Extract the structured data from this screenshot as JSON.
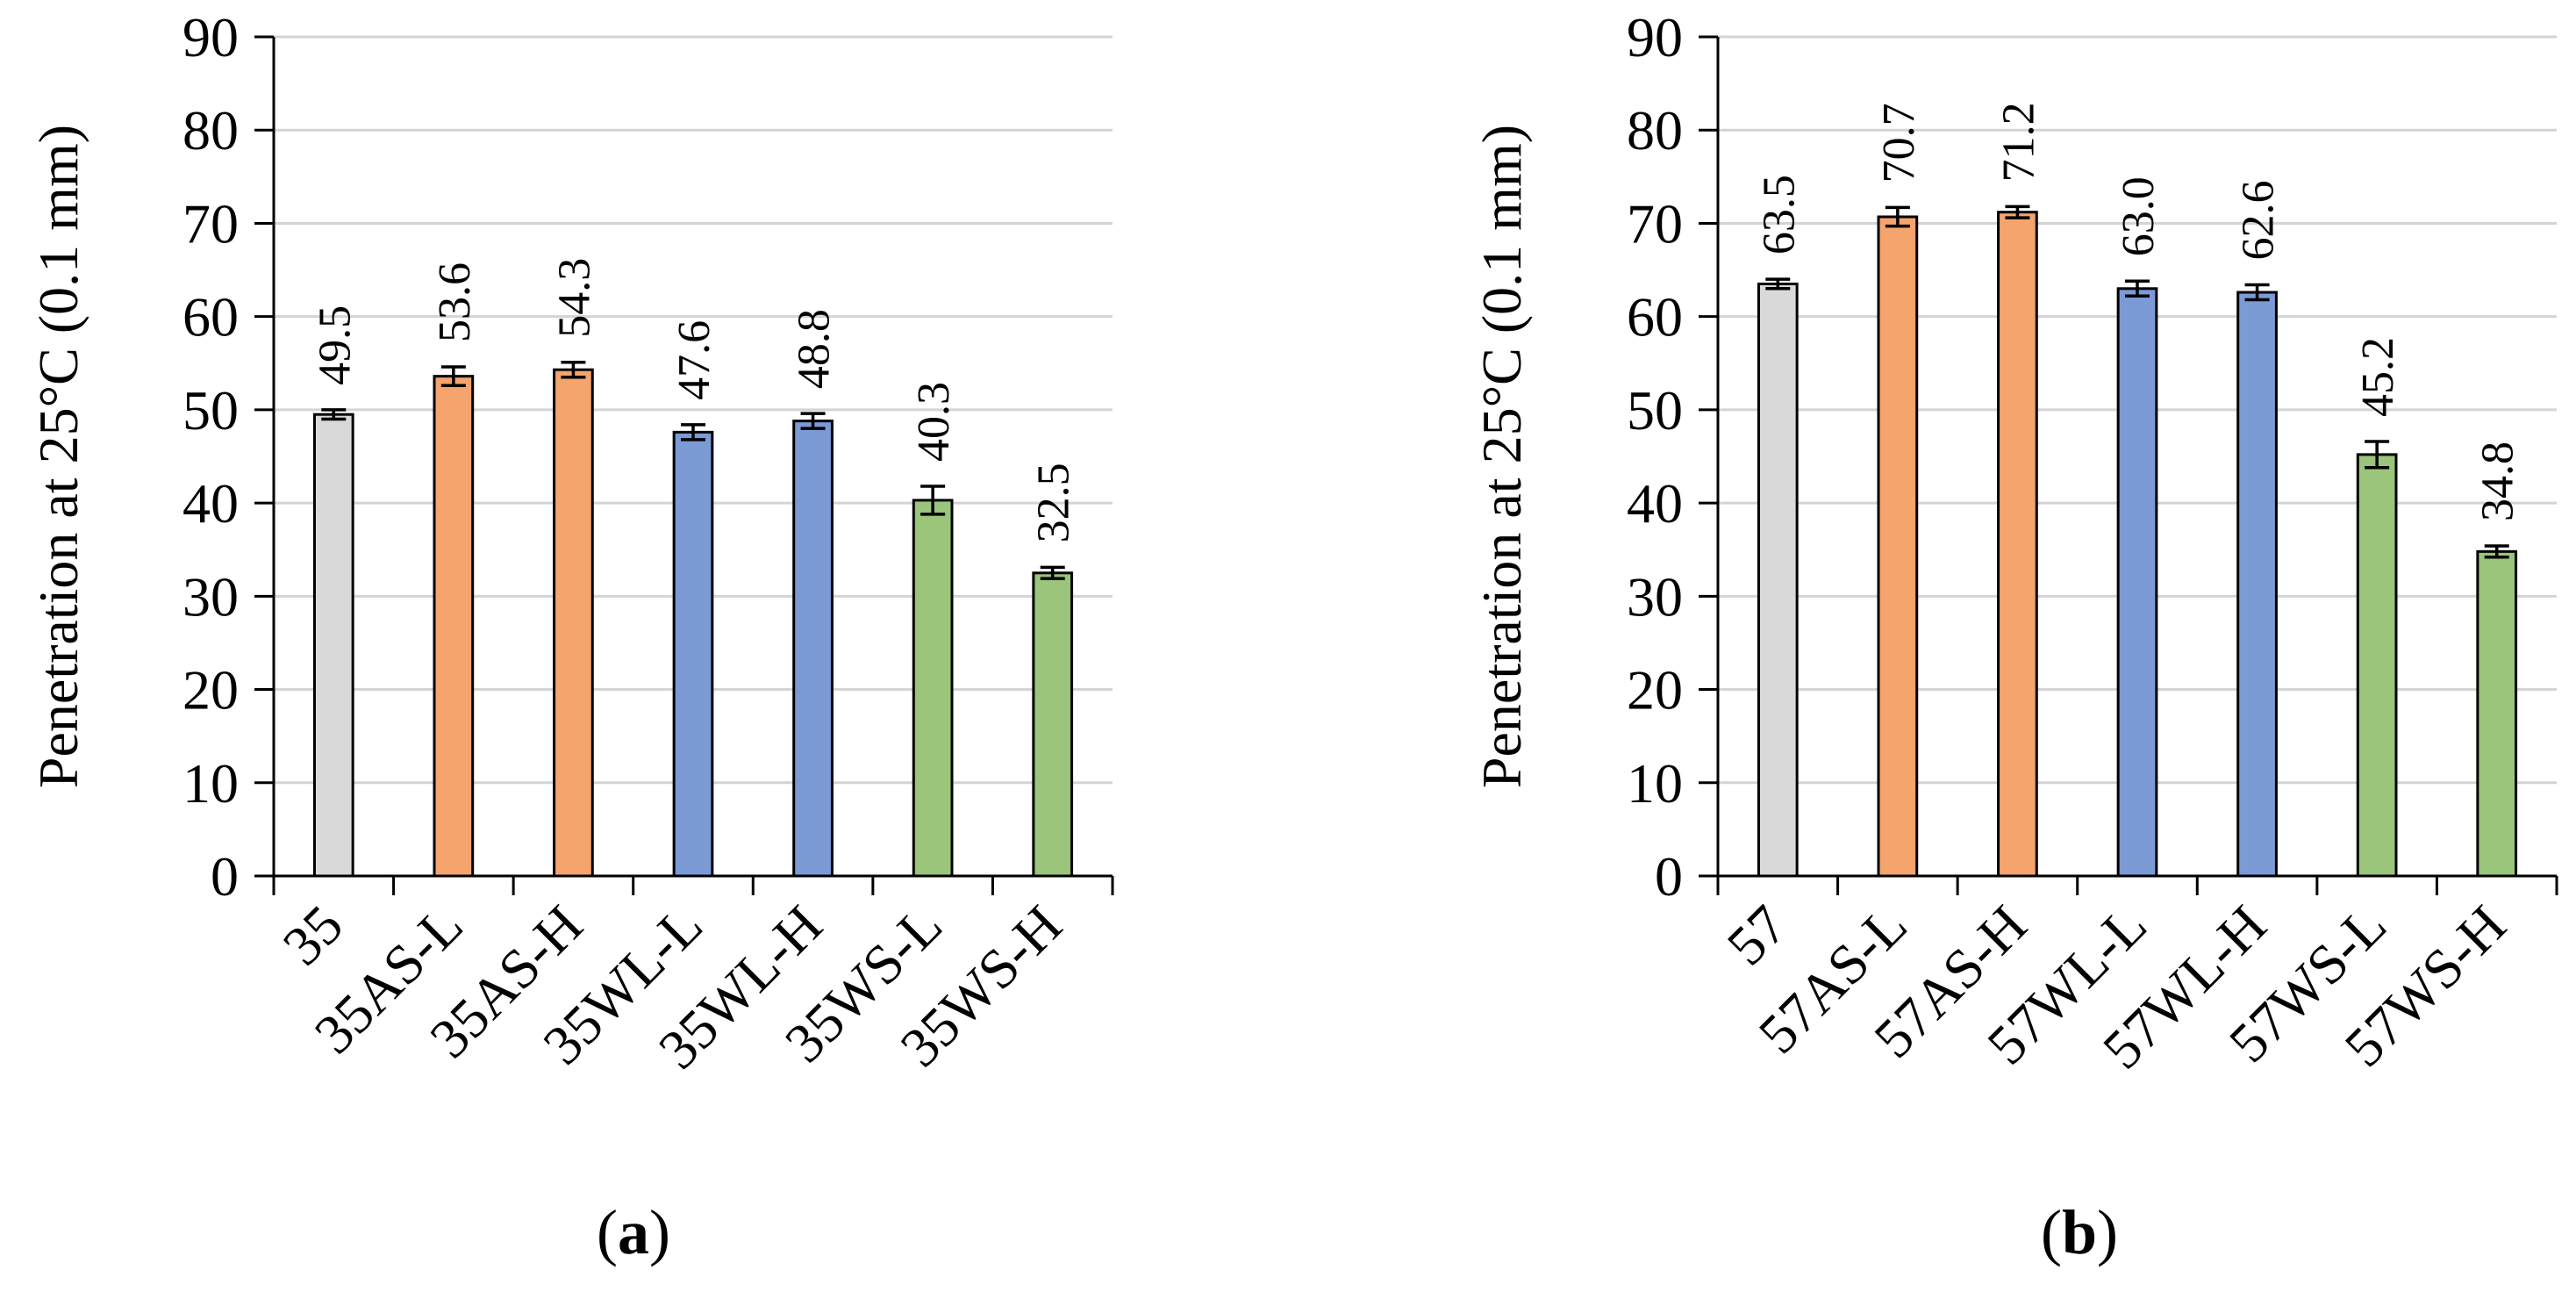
{
  "chart_data": [
    {
      "type": "bar",
      "panel_label": "a",
      "ylabel": "Penetration at 25°C (0.1 mm)",
      "xlabel": "",
      "ylim": [
        0,
        90
      ],
      "yticks": [
        "0",
        "10",
        "20",
        "30",
        "40",
        "50",
        "60",
        "70",
        "80",
        "90"
      ],
      "grid": true,
      "categories": [
        "35",
        "35AS-L",
        "35AS-H",
        "35WL-L",
        "35WL-H",
        "35WS-L",
        "35WS-H"
      ],
      "values": [
        49.5,
        53.6,
        54.3,
        47.6,
        48.8,
        40.3,
        32.5
      ],
      "value_labels": [
        "49.5",
        "53.6",
        "54.3",
        "47.6",
        "48.8",
        "40.3",
        "32.5"
      ],
      "errors": [
        0.5,
        1.0,
        0.8,
        0.8,
        0.8,
        1.5,
        0.6
      ],
      "colors": [
        "#d9d9d9",
        "#f4a46c",
        "#f4a46c",
        "#7b9ad6",
        "#7b9ad6",
        "#9ac57b",
        "#9ac57b"
      ]
    },
    {
      "type": "bar",
      "panel_label": "b",
      "ylabel": "Penetration at 25°C (0.1 mm)",
      "xlabel": "",
      "ylim": [
        0,
        90
      ],
      "yticks": [
        "0",
        "10",
        "20",
        "30",
        "40",
        "50",
        "60",
        "70",
        "80",
        "90"
      ],
      "grid": true,
      "categories": [
        "57",
        "57AS-L",
        "57AS-H",
        "57WL-L",
        "57WL-H",
        "57WS-L",
        "57WS-H"
      ],
      "values": [
        63.5,
        70.7,
        71.2,
        63.0,
        62.6,
        45.2,
        34.8
      ],
      "value_labels": [
        "63.5",
        "70.7",
        "71.2",
        "63.0",
        "62.6",
        "45.2",
        "34.8"
      ],
      "errors": [
        0.5,
        1.0,
        0.6,
        0.8,
        0.8,
        1.4,
        0.6
      ],
      "colors": [
        "#d9d9d9",
        "#f4a46c",
        "#f4a46c",
        "#7b9ad6",
        "#7b9ad6",
        "#9ac57b",
        "#9ac57b"
      ]
    }
  ]
}
